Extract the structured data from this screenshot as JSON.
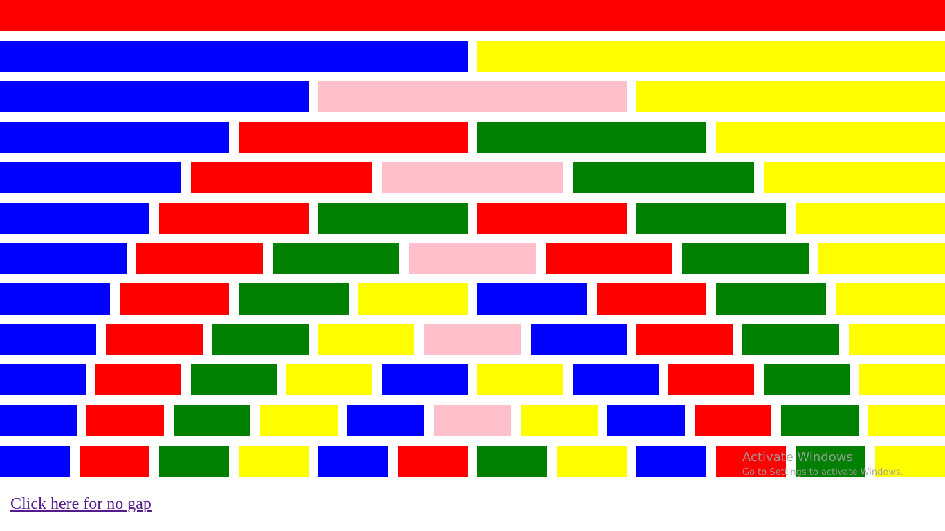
{
  "colors": {
    "R": "#ff0000",
    "B": "#0000ff",
    "Y": "#ffff00",
    "P": "#ffc0cb",
    "G": "#008000"
  },
  "color_names": {
    "R": "red",
    "B": "blue",
    "Y": "yellow",
    "P": "pink",
    "G": "green"
  },
  "rows": [
    [
      "R"
    ],
    [
      "B",
      "Y"
    ],
    [
      "B",
      "P",
      "Y"
    ],
    [
      "B",
      "R",
      "G",
      "Y"
    ],
    [
      "B",
      "R",
      "P",
      "G",
      "Y"
    ],
    [
      "B",
      "R",
      "G",
      "R",
      "G",
      "Y"
    ],
    [
      "B",
      "R",
      "G",
      "P",
      "R",
      "G",
      "Y"
    ],
    [
      "B",
      "R",
      "G",
      "Y",
      "B",
      "R",
      "G",
      "Y"
    ],
    [
      "B",
      "R",
      "G",
      "Y",
      "P",
      "B",
      "R",
      "G",
      "Y"
    ],
    [
      "B",
      "R",
      "G",
      "Y",
      "B",
      "Y",
      "B",
      "R",
      "G",
      "Y"
    ],
    [
      "B",
      "R",
      "G",
      "Y",
      "B",
      "P",
      "Y",
      "B",
      "R",
      "G",
      "Y"
    ],
    [
      "B",
      "R",
      "G",
      "Y",
      "B",
      "R",
      "G",
      "Y",
      "B",
      "R",
      "G",
      "Y"
    ]
  ],
  "link": {
    "label": "Click here for no gap"
  },
  "watermark": {
    "title": "Activate Windows",
    "subtitle": "Go to Settings to activate Windows."
  }
}
